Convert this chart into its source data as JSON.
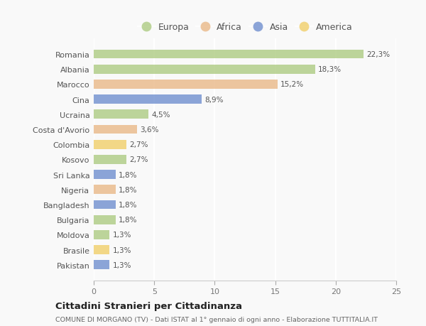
{
  "countries": [
    "Romania",
    "Albania",
    "Marocco",
    "Cina",
    "Ucraina",
    "Costa d'Avorio",
    "Colombia",
    "Kosovo",
    "Sri Lanka",
    "Nigeria",
    "Bangladesh",
    "Bulgaria",
    "Moldova",
    "Brasile",
    "Pakistan"
  ],
  "values": [
    22.3,
    18.3,
    15.2,
    8.9,
    4.5,
    3.6,
    2.7,
    2.7,
    1.8,
    1.8,
    1.8,
    1.8,
    1.3,
    1.3,
    1.3
  ],
  "labels": [
    "22,3%",
    "18,3%",
    "15,2%",
    "8,9%",
    "4,5%",
    "3,6%",
    "2,7%",
    "2,7%",
    "1,8%",
    "1,8%",
    "1,8%",
    "1,8%",
    "1,3%",
    "1,3%",
    "1,3%"
  ],
  "continents": [
    "Europa",
    "Europa",
    "Africa",
    "Asia",
    "Europa",
    "Africa",
    "America",
    "Europa",
    "Asia",
    "Africa",
    "Asia",
    "Europa",
    "Europa",
    "America",
    "Asia"
  ],
  "colors": {
    "Europa": "#a8c87a",
    "Africa": "#e8b480",
    "Asia": "#6688cc",
    "America": "#f0cc60"
  },
  "legend_order": [
    "Europa",
    "Africa",
    "Asia",
    "America"
  ],
  "title": "Cittadini Stranieri per Cittadinanza",
  "subtitle": "COMUNE DI MORGANO (TV) - Dati ISTAT al 1° gennaio di ogni anno - Elaborazione TUTTITALIA.IT",
  "xlim": [
    0,
    25
  ],
  "xticks": [
    0,
    5,
    10,
    15,
    20,
    25
  ],
  "bg_color": "#f9f9f9",
  "bar_alpha": 0.75
}
